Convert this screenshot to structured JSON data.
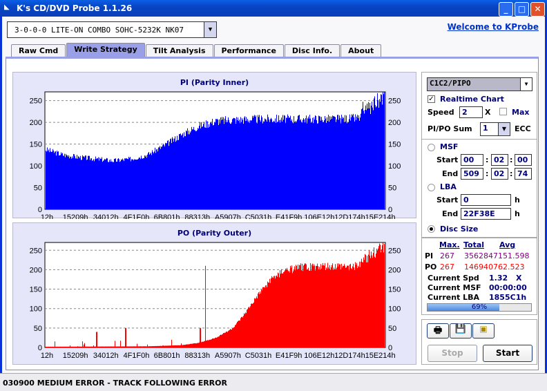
{
  "window": {
    "title": "K's CD/DVD Probe 1.1.26",
    "minimize": "_",
    "maximize": "□",
    "close": "✕"
  },
  "drive": {
    "selected": "3-0-0-0 LITE-ON COMBO SOHC-5232K NK07"
  },
  "welcome_link": "Welcome to KProbe",
  "tabs": [
    "Raw Cmd",
    "Write Strategy",
    "Tilt Analysis",
    "Performance",
    "Disc Info.",
    "About"
  ],
  "active_tab": "Write Strategy",
  "chart_data": [
    {
      "type": "bar",
      "title": "PI (Parity Inner)",
      "color": "#0000ff",
      "ylim": [
        0,
        270
      ],
      "yticks": [
        0,
        50,
        100,
        150,
        200,
        250
      ],
      "xticks": [
        "12h",
        "15209h",
        "34012h",
        "4F1F0h",
        "6B801h",
        "88313h",
        "A5907h",
        "C5031h",
        "E41F9h",
        "106E12h",
        "12D174h",
        "15E214h"
      ],
      "profile_pct": [
        0,
        5,
        10,
        15,
        20,
        25,
        30,
        35,
        40,
        45,
        50,
        55,
        60,
        65,
        70,
        75,
        80,
        85,
        90,
        93,
        95,
        97,
        100
      ],
      "profile_val": [
        140,
        128,
        122,
        118,
        114,
        118,
        128,
        150,
        175,
        195,
        207,
        210,
        211,
        212,
        212,
        212,
        212,
        212,
        213,
        215,
        225,
        238,
        250
      ]
    },
    {
      "type": "bar",
      "title": "PO (Parity Outer)",
      "color": "#ff0000",
      "ylim": [
        0,
        270
      ],
      "yticks": [
        0,
        50,
        100,
        150,
        200,
        250
      ],
      "xticks": [
        "12h",
        "15209h",
        "34012h",
        "4F1F0h",
        "6B801h",
        "88313h",
        "A5907h",
        "C5031h",
        "E41F9h",
        "106E12h",
        "12D174h",
        "15E214h"
      ],
      "profile_pct": [
        0,
        30,
        40,
        45,
        50,
        55,
        58,
        62,
        66,
        70,
        75,
        80,
        85,
        90,
        93,
        95,
        97,
        100
      ],
      "profile_val": [
        2,
        3,
        6,
        12,
        25,
        50,
        80,
        130,
        175,
        200,
        210,
        212,
        212,
        212,
        215,
        225,
        240,
        255
      ],
      "spikes": [
        {
          "pct": 15,
          "val": 40
        },
        {
          "pct": 23.5,
          "val": 50
        },
        {
          "pct": 47,
          "val": 210
        },
        {
          "pct": 45.5,
          "val": 50
        }
      ]
    }
  ],
  "side": {
    "mode": "C1C2/PIPO",
    "realtime_label": "Realtime Chart",
    "speed_label": "Speed",
    "speed": "2",
    "x": "X",
    "max_label": "Max",
    "sum_label": "PI/PO Sum",
    "sum": "1",
    "ecc": "ECC",
    "msf_label": "MSF",
    "start": "Start",
    "end": "End",
    "msf_start": [
      "00",
      "02",
      "00"
    ],
    "msf_end": [
      "509",
      "02",
      "74"
    ],
    "colon": ":",
    "lba_label": "LBA",
    "lba_start": "0",
    "lba_end": "22F38E",
    "h": "h",
    "disc_size": "Disc Size"
  },
  "stats": {
    "max": "Max.",
    "total": "Total",
    "avg": "Avg",
    "pi": "PI",
    "pi_max": "267",
    "pi_total": "3562847",
    "pi_avg": "151.598",
    "po": "PO",
    "po_max": "267",
    "po_total": "1469407",
    "po_avg": "62.523",
    "spd_label": "Current Spd",
    "spd": "1.32",
    "spd_unit": "X",
    "msf_label": "Current MSF",
    "msf": "00:00:00",
    "lba_label": "Current LBA",
    "lba": "1855C1h",
    "progress": 69,
    "progress_text": "69%"
  },
  "buttons": {
    "stop": "Stop",
    "start": "Start"
  },
  "status": "030900 MEDIUM ERROR - TRACK FOLLOWING ERROR"
}
